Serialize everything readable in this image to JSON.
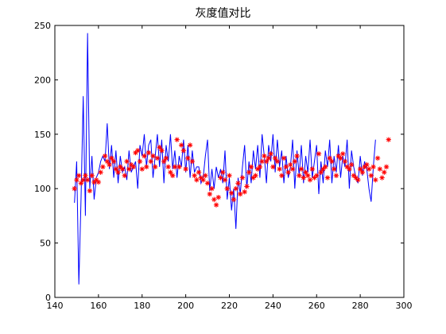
{
  "chart_data": {
    "type": "line",
    "title": "灰度值对比",
    "xlabel": "",
    "ylabel": "",
    "xlim": [
      140,
      300
    ],
    "ylim": [
      0,
      250
    ],
    "xticks": [
      140,
      160,
      180,
      200,
      220,
      240,
      260,
      280,
      300
    ],
    "yticks": [
      0,
      50,
      100,
      150,
      200,
      250
    ],
    "grid": false,
    "legend": "none",
    "series": [
      {
        "style": "line",
        "color": "#0000ff",
        "x_start": 149,
        "x_step": 1,
        "values": [
          87,
          125,
          12,
          90,
          185,
          75,
          243,
          100,
          130,
          90,
          110,
          115,
          125,
          130,
          125,
          160,
          118,
          140,
          110,
          135,
          105,
          130,
          115,
          120,
          108,
          135,
          115,
          120,
          125,
          100,
          140,
          130,
          150,
          120,
          140,
          145,
          110,
          130,
          150,
          120,
          145,
          105,
          140,
          125,
          150,
          118,
          135,
          110,
          130,
          120,
          145,
          115,
          140,
          110,
          135,
          115,
          120,
          120,
          105,
          110,
          130,
          145,
          98,
          118,
          100,
          120,
          110,
          118,
          105,
          135,
          90,
          110,
          80,
          100,
          63,
          110,
          95,
          120,
          140,
          100,
          125,
          105,
          135,
          118,
          140,
          110,
          150,
          130,
          105,
          140,
          125,
          150,
          115,
          145,
          120,
          135,
          105,
          130,
          110,
          120,
          145,
          100,
          135,
          112,
          140,
          105,
          130,
          115,
          145,
          110,
          125,
          140,
          95,
          125,
          105,
          135,
          120,
          145,
          105,
          130,
          115,
          140,
          110,
          130,
          120,
          145,
          100,
          135,
          120,
          110,
          105,
          130,
          112,
          125,
          118,
          100,
          88,
          120,
          145
        ]
      },
      {
        "style": "marker",
        "marker": "*",
        "color": "#ff0000",
        "x_start": 149,
        "x_step": 1,
        "values": [
          100,
          108,
          112,
          105,
          108,
          112,
          108,
          98,
          112,
          106,
          108,
          106,
          115,
          120,
          130,
          125,
          122,
          128,
          125,
          118,
          115,
          120,
          118,
          112,
          125,
          118,
          122,
          120,
          133,
          135,
          125,
          118,
          130,
          120,
          133,
          125,
          130,
          120,
          128,
          138,
          135,
          125,
          128,
          120,
          115,
          112,
          120,
          145,
          120,
          140,
          135,
          118,
          128,
          140,
          125,
          112,
          108,
          115,
          110,
          108,
          112,
          105,
          95,
          100,
          90,
          85,
          92,
          110,
          115,
          108,
          100,
          112,
          96,
          90,
          100,
          105,
          95,
          110,
          97,
          102,
          115,
          120,
          110,
          112,
          118,
          120,
          125,
          130,
          125,
          128,
          132,
          120,
          128,
          125,
          118,
          112,
          128,
          120,
          115,
          122,
          118,
          125,
          130,
          112,
          118,
          110,
          115,
          112,
          108,
          118,
          110,
          112,
          132,
          115,
          118,
          120,
          110,
          128,
          125,
          118,
          112,
          130,
          128,
          132,
          125,
          120,
          118,
          122,
          112,
          110,
          108,
          118,
          115,
          120,
          122,
          118,
          112,
          120,
          108,
          128,
          118,
          110,
          115,
          120,
          145
        ]
      }
    ]
  }
}
